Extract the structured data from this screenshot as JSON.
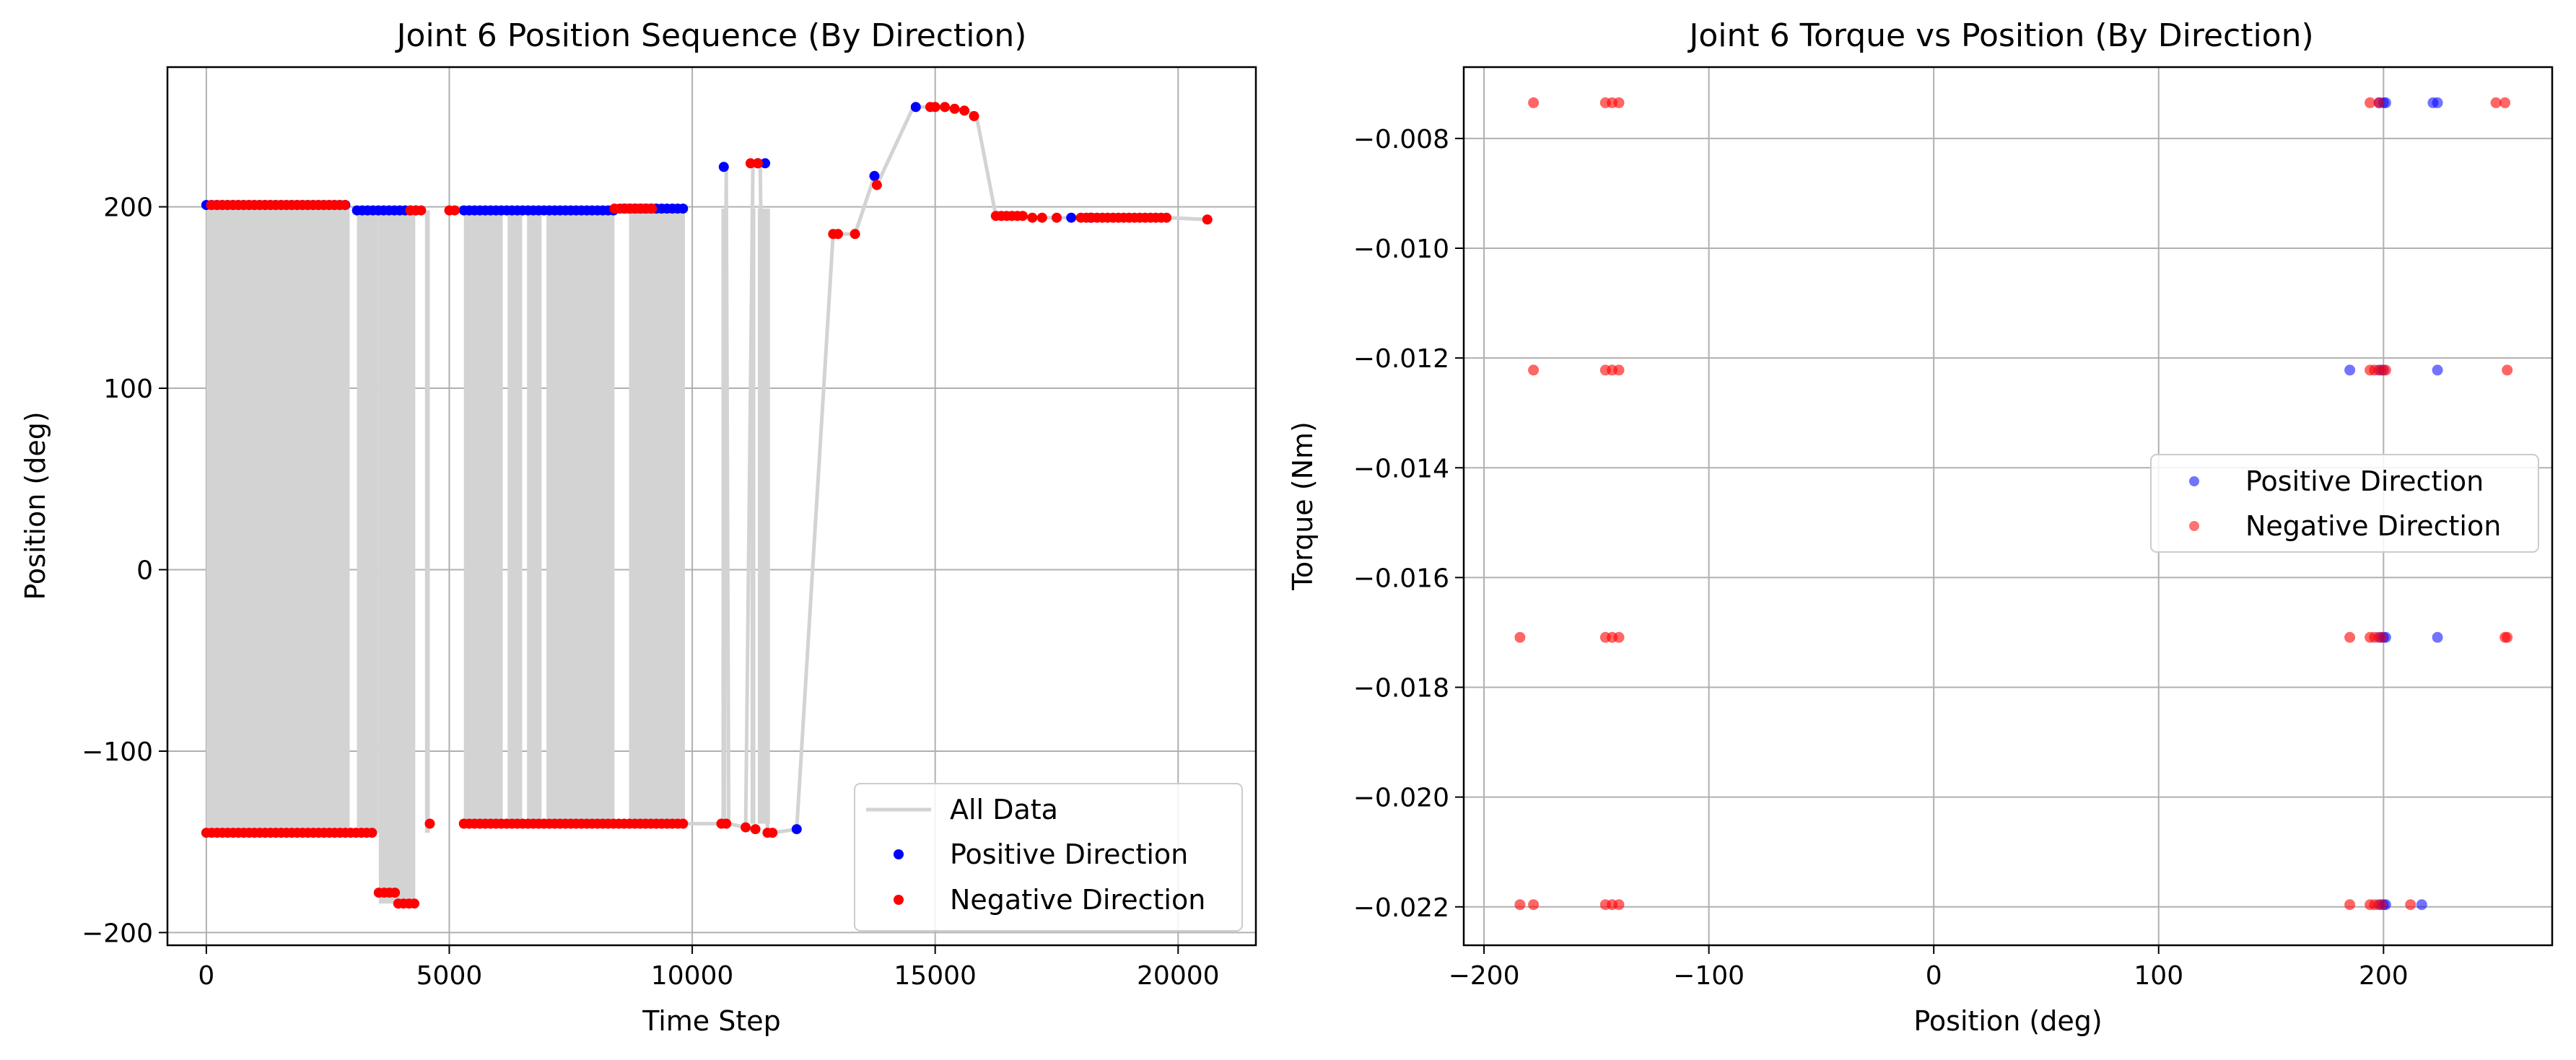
{
  "colors": {
    "positive": "#0000ff",
    "negative": "#ff0000",
    "all_data": "#d3d3d3",
    "grid": "#b0b0b0"
  },
  "chart_data": [
    {
      "type": "line",
      "title": "Joint 6 Position Sequence (By Direction)",
      "xlabel": "Time Step",
      "ylabel": "Position (deg)",
      "xlim": [
        -800,
        21600
      ],
      "ylim": [
        -207,
        277
      ],
      "xticks": [
        0,
        5000,
        10000,
        15000,
        20000
      ],
      "xtick_labels": [
        "0",
        "5000",
        "10000",
        "15000",
        "20000"
      ],
      "yticks": [
        -200,
        -100,
        0,
        100,
        200
      ],
      "ytick_labels": [
        "−200",
        "−100",
        "0",
        "100",
        "200"
      ],
      "grid": true,
      "legend_position": "lower right",
      "legend": [
        "All Data",
        "Positive Direction",
        "Negative Direction"
      ],
      "series": [
        {
          "name": "All Data",
          "kind": "line",
          "bands": [
            [
              0,
              2950
            ],
            [
              3100,
              3550
            ],
            [
              3550,
              4300
            ],
            [
              4500,
              4600
            ],
            [
              5300,
              6100
            ],
            [
              6200,
              6500
            ],
            [
              6600,
              6900
            ],
            [
              7000,
              8400
            ],
            [
              8700,
              9850
            ],
            [
              10600,
              10700
            ],
            [
              11200,
              11300
            ],
            [
              11350,
              11600
            ]
          ],
          "points": [
            [
              9850,
              -140
            ],
            [
              10650,
              -140
            ],
            [
              10700,
              222
            ],
            [
              10750,
              -140
            ],
            [
              11100,
              -142
            ],
            [
              11250,
              224
            ],
            [
              11400,
              224
            ],
            [
              11550,
              -145
            ],
            [
              11650,
              -145
            ],
            [
              12150,
              -143
            ],
            [
              12900,
              185
            ],
            [
              13350,
              185
            ],
            [
              13750,
              217
            ],
            [
              13800,
              212
            ],
            [
              14550,
              255
            ],
            [
              14900,
              255
            ],
            [
              15650,
              253
            ],
            [
              15850,
              250
            ],
            [
              16250,
              195
            ],
            [
              16700,
              195
            ],
            [
              17000,
              194
            ],
            [
              19800,
              194
            ],
            [
              20600,
              193
            ]
          ]
        },
        {
          "name": "Positive Direction",
          "kind": "scatter",
          "dense_runs": [
            [
              0,
              2900,
              201
            ],
            [
              3100,
              4400,
              198
            ],
            [
              5300,
              8400,
              198
            ],
            [
              8600,
              9850,
              199
            ]
          ],
          "points": [
            [
              10650,
              222
            ],
            [
              11350,
              224
            ],
            [
              11500,
              224
            ],
            [
              12150,
              -143
            ],
            [
              13750,
              217
            ],
            [
              14600,
              255
            ],
            [
              17800,
              194
            ],
            [
              18200,
              194
            ]
          ]
        },
        {
          "name": "Negative Direction",
          "kind": "scatter",
          "dense_runs": [
            [
              0,
              3500,
              -145
            ],
            [
              3550,
              3950,
              -178
            ],
            [
              3950,
              4300,
              -184
            ],
            [
              5300,
              9850,
              -140
            ],
            [
              16250,
              16800,
              195
            ],
            [
              18000,
              19800,
              194
            ],
            [
              100,
              2900,
              201
            ],
            [
              4200,
              4500,
              198
            ],
            [
              5000,
              5200,
              198
            ],
            [
              8400,
              9200,
              199
            ]
          ],
          "points": [
            [
              4600,
              -140
            ],
            [
              10600,
              -140
            ],
            [
              10700,
              -140
            ],
            [
              11100,
              -142
            ],
            [
              11300,
              -143
            ],
            [
              11200,
              224
            ],
            [
              11350,
              224
            ],
            [
              11550,
              -145
            ],
            [
              11650,
              -145
            ],
            [
              12900,
              185
            ],
            [
              13000,
              185
            ],
            [
              13350,
              185
            ],
            [
              13800,
              212
            ],
            [
              14900,
              255
            ],
            [
              15000,
              255
            ],
            [
              15200,
              255
            ],
            [
              15400,
              254
            ],
            [
              15600,
              253
            ],
            [
              15800,
              250
            ],
            [
              17000,
              194
            ],
            [
              17200,
              194
            ],
            [
              17500,
              194
            ],
            [
              20600,
              193
            ]
          ]
        }
      ]
    },
    {
      "type": "scatter",
      "title": "Joint 6 Torque vs Position (By Direction)",
      "xlabel": "Position (deg)",
      "ylabel": "Torque (Nm)",
      "xlim": [
        -209,
        275
      ],
      "ylim": [
        -0.0227,
        -0.0067
      ],
      "xticks": [
        -200,
        -100,
        0,
        100,
        200
      ],
      "xtick_labels": [
        "−200",
        "−100",
        "0",
        "100",
        "200"
      ],
      "yticks": [
        -0.022,
        -0.02,
        -0.018,
        -0.016,
        -0.014,
        -0.012,
        -0.01,
        -0.008
      ],
      "ytick_labels": [
        "−0.022",
        "−0.020",
        "−0.018",
        "−0.016",
        "−0.014",
        "−0.012",
        "−0.010",
        "−0.008"
      ],
      "grid": true,
      "legend_position": "center right",
      "legend": [
        "Positive Direction",
        "Negative Direction"
      ],
      "series": [
        {
          "name": "Positive Direction",
          "points": [
            [
              198,
              -0.00735
            ],
            [
              200,
              -0.00735
            ],
            [
              201,
              -0.00735
            ],
            [
              222,
              -0.00735
            ],
            [
              224,
              -0.00735
            ],
            [
              185,
              -0.01222
            ],
            [
              198,
              -0.01222
            ],
            [
              200,
              -0.01222
            ],
            [
              224,
              -0.01222
            ],
            [
              198,
              -0.01709
            ],
            [
              200,
              -0.01709
            ],
            [
              201,
              -0.01709
            ],
            [
              224,
              -0.01709
            ],
            [
              198,
              -0.02196
            ],
            [
              200,
              -0.02196
            ],
            [
              201,
              -0.02196
            ],
            [
              217,
              -0.02196
            ]
          ]
        },
        {
          "name": "Negative Direction",
          "points": [
            [
              -178,
              -0.00735
            ],
            [
              -146,
              -0.00735
            ],
            [
              -143,
              -0.00735
            ],
            [
              -140,
              -0.00735
            ],
            [
              194,
              -0.00735
            ],
            [
              198,
              -0.00735
            ],
            [
              250,
              -0.00735
            ],
            [
              254,
              -0.00735
            ],
            [
              -178,
              -0.01222
            ],
            [
              -146,
              -0.01222
            ],
            [
              -143,
              -0.01222
            ],
            [
              -140,
              -0.01222
            ],
            [
              194,
              -0.01222
            ],
            [
              196,
              -0.01222
            ],
            [
              199,
              -0.01222
            ],
            [
              201,
              -0.01222
            ],
            [
              255,
              -0.01222
            ],
            [
              -184,
              -0.01709
            ],
            [
              -146,
              -0.01709
            ],
            [
              -143,
              -0.01709
            ],
            [
              -140,
              -0.01709
            ],
            [
              185,
              -0.01709
            ],
            [
              194,
              -0.01709
            ],
            [
              196,
              -0.01709
            ],
            [
              199,
              -0.01709
            ],
            [
              254,
              -0.01709
            ],
            [
              255,
              -0.01709
            ],
            [
              -184,
              -0.02196
            ],
            [
              -178,
              -0.02196
            ],
            [
              -146,
              -0.02196
            ],
            [
              -143,
              -0.02196
            ],
            [
              -140,
              -0.02196
            ],
            [
              185,
              -0.02196
            ],
            [
              194,
              -0.02196
            ],
            [
              196,
              -0.02196
            ],
            [
              199,
              -0.02196
            ],
            [
              212,
              -0.02196
            ]
          ]
        }
      ]
    }
  ]
}
